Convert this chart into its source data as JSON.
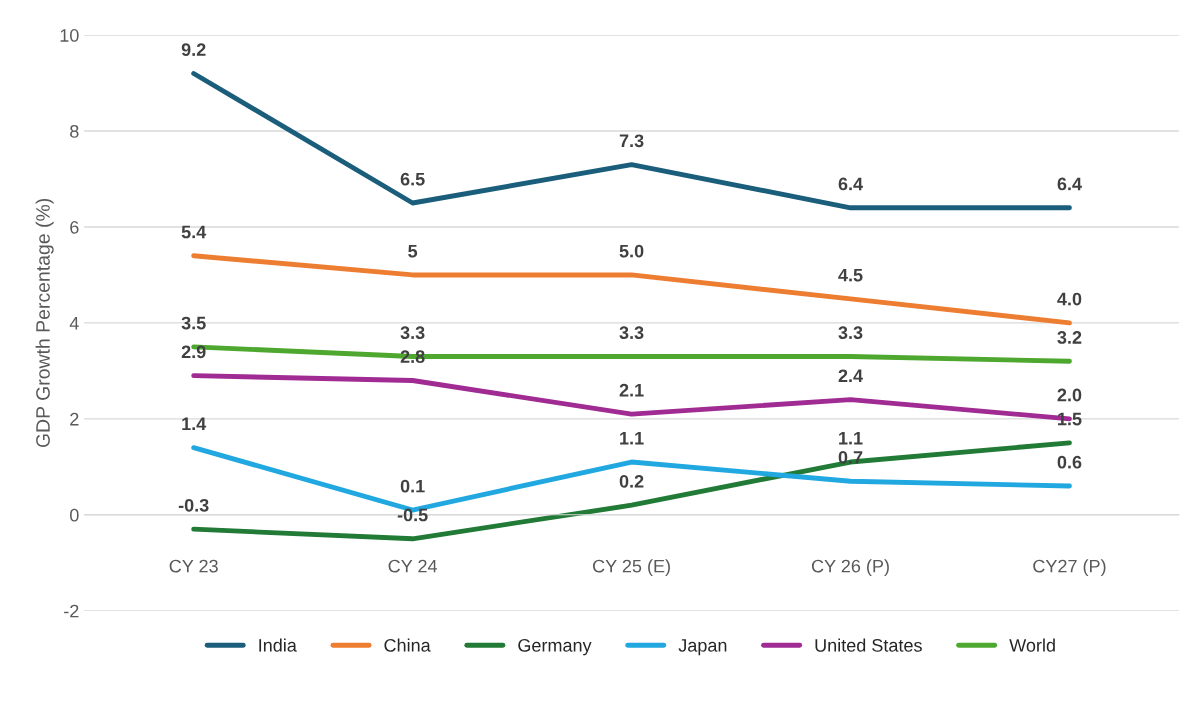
{
  "chart_data": {
    "type": "line",
    "ylabel": "GDP Growth Percentage (%)",
    "categories": [
      "CY 23",
      "CY 24",
      "CY 25 (E)",
      "CY 26 (P)",
      "CY27 (P)"
    ],
    "series": [
      {
        "name": "India",
        "color": "#1b5e7b",
        "values": [
          9.2,
          6.5,
          7.3,
          6.4,
          6.4
        ],
        "value_labels": [
          "9.2",
          "6.5",
          "7.3",
          "6.4",
          "6.4"
        ]
      },
      {
        "name": "China",
        "color": "#ed7d31",
        "values": [
          5.4,
          5,
          5.0,
          4.5,
          4.0
        ],
        "value_labels": [
          "5.4",
          "5",
          "5.0",
          "4.5",
          "4.0"
        ]
      },
      {
        "name": "Germany",
        "color": "#217a35",
        "values": [
          -0.3,
          -0.5,
          0.2,
          1.1,
          1.5
        ],
        "value_labels": [
          "-0.3",
          "-0.5",
          "0.2",
          "1.1",
          "1.5"
        ]
      },
      {
        "name": "Japan",
        "color": "#21a8e0",
        "values": [
          1.4,
          0.1,
          1.1,
          0.7,
          0.6
        ],
        "value_labels": [
          "1.4",
          "0.1",
          "1.1",
          "0.7",
          "0.6"
        ]
      },
      {
        "name": "United States",
        "color": "#a02b93",
        "values": [
          2.9,
          2.8,
          2.1,
          2.4,
          2.0
        ],
        "value_labels": [
          "2.9",
          "2.8",
          "2.1",
          "2.4",
          "2.0"
        ]
      },
      {
        "name": "World",
        "color": "#4ea72e",
        "values": [
          3.5,
          3.3,
          3.3,
          3.3,
          3.2
        ],
        "value_labels": [
          "3.5",
          "3.3",
          "3.3",
          "3.3",
          "3.2"
        ]
      }
    ],
    "ylim": [
      -2,
      10
    ],
    "yticks": [
      -2,
      0,
      2,
      4,
      6,
      8,
      10
    ],
    "grid": "y",
    "legend": "bottom",
    "marker": "none",
    "line_style": "solid"
  }
}
